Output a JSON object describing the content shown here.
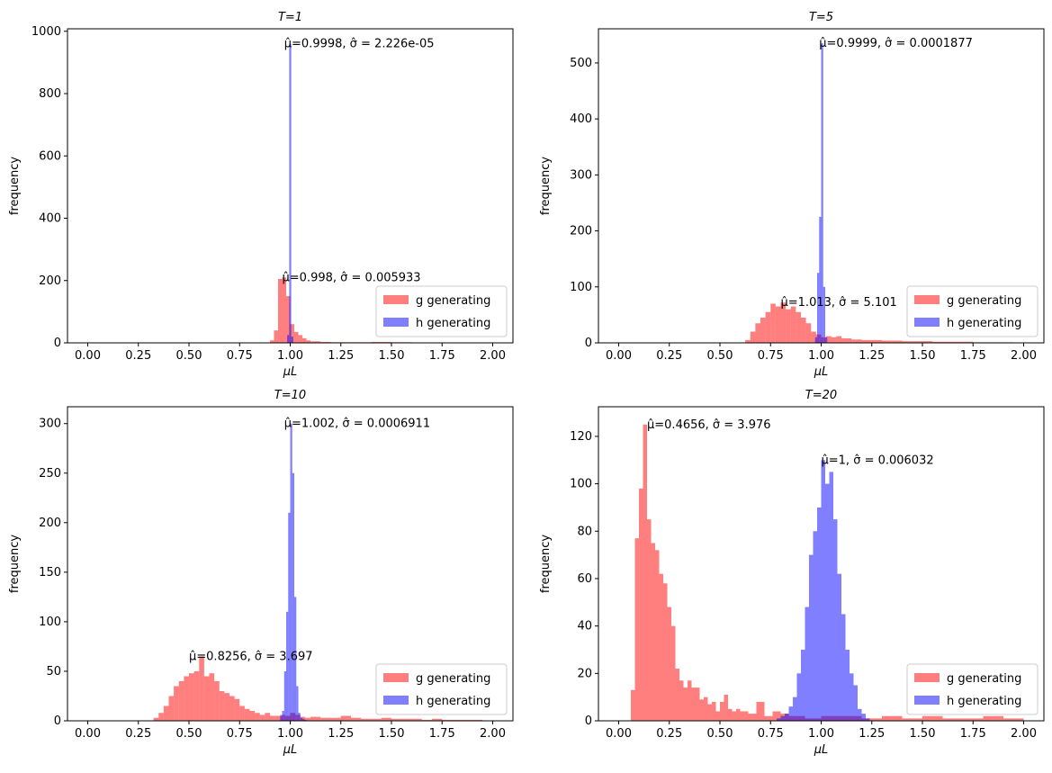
{
  "chart_data": [
    {
      "type": "histogram",
      "title": "T=1",
      "xlabel": "μL",
      "ylabel": "frequency",
      "legend": "lower right",
      "alpha": 0.5,
      "xlim": [
        -0.1,
        2.1
      ],
      "ylim": [
        0,
        1008
      ],
      "xticks": [
        {
          "value": 0,
          "label": "0.00"
        },
        {
          "value": 0.25,
          "label": "0.25"
        },
        {
          "value": 0.5,
          "label": "0.50"
        },
        {
          "value": 0.75,
          "label": "0.75"
        },
        {
          "value": 1,
          "label": "1.00"
        },
        {
          "value": 1.25,
          "label": "1.25"
        },
        {
          "value": 1.5,
          "label": "1.50"
        },
        {
          "value": 1.75,
          "label": "1.75"
        },
        {
          "value": 2,
          "label": "2.00"
        }
      ],
      "yticks": [
        0,
        200,
        400,
        600,
        800,
        1000
      ],
      "series": [
        {
          "name": "g generating",
          "color": "#ff0000",
          "bins": [
            0.9,
            0.92,
            0.94,
            0.96,
            0.98,
            1.0,
            1.02,
            1.04,
            1.06,
            1.08,
            1.1,
            1.15,
            1.2,
            1.3,
            1.4,
            1.5,
            1.6,
            1.65
          ],
          "values": [
            8,
            40,
            205,
            210,
            150,
            60,
            35,
            25,
            15,
            8,
            5,
            3,
            2,
            2,
            3,
            2,
            1
          ]
        },
        {
          "name": "h generating",
          "color": "#0000ff",
          "bins": [
            0.985,
            0.995,
            1.005,
            1.015
          ],
          "values": [
            25,
            960,
            20
          ]
        }
      ],
      "annotations": [
        {
          "text": "μ̂=0.9998, σ̂ = 2.226e-05",
          "x": 0.97,
          "y": 960
        },
        {
          "text": "μ̂=0.998, σ̂ = 0.005933",
          "x": 0.96,
          "y": 210
        }
      ]
    },
    {
      "type": "histogram",
      "title": "T=5",
      "xlabel": "μL",
      "ylabel": "frequency",
      "legend": "lower right",
      "alpha": 0.5,
      "xlim": [
        -0.1,
        2.1
      ],
      "ylim": [
        0,
        561
      ],
      "xticks": [
        {
          "value": 0,
          "label": "0.00"
        },
        {
          "value": 0.25,
          "label": "0.25"
        },
        {
          "value": 0.5,
          "label": "0.50"
        },
        {
          "value": 0.75,
          "label": "0.75"
        },
        {
          "value": 1,
          "label": "1.00"
        },
        {
          "value": 1.25,
          "label": "1.25"
        },
        {
          "value": 1.5,
          "label": "1.50"
        },
        {
          "value": 1.75,
          "label": "1.75"
        },
        {
          "value": 2,
          "label": "2.00"
        }
      ],
      "yticks": [
        0,
        100,
        200,
        300,
        400,
        500
      ],
      "series": [
        {
          "name": "g generating",
          "color": "#ff0000",
          "bins": [
            0.625,
            0.65,
            0.675,
            0.7,
            0.725,
            0.75,
            0.775,
            0.8,
            0.825,
            0.85,
            0.875,
            0.9,
            0.925,
            0.95,
            0.975,
            1.0,
            1.025,
            1.05,
            1.075,
            1.1,
            1.15,
            1.2,
            1.25,
            1.3,
            1.35,
            1.4,
            1.45,
            1.5,
            1.55,
            1.6,
            1.65,
            1.7,
            1.75,
            1.8,
            1.85,
            1.9,
            1.95
          ],
          "values": [
            5,
            20,
            35,
            45,
            55,
            70,
            65,
            72,
            60,
            65,
            55,
            45,
            35,
            20,
            15,
            10,
            12,
            10,
            12,
            8,
            6,
            5,
            5,
            4,
            4,
            3,
            3,
            3,
            2,
            2,
            2,
            2,
            1,
            1,
            1,
            1
          ]
        },
        {
          "name": "h generating",
          "color": "#0000ff",
          "bins": [
            0.97,
            0.98,
            0.99,
            1.0,
            1.01,
            1.02,
            1.03
          ],
          "values": [
            10,
            125,
            225,
            535,
            100,
            10
          ]
        }
      ],
      "annotations": [
        {
          "text": "μ̂=0.9999, σ̂ = 0.0001877",
          "x": 0.99,
          "y": 535
        },
        {
          "text": "μ̂=1.013, σ̂ = 5.101",
          "x": 0.8,
          "y": 72
        }
      ]
    },
    {
      "type": "histogram",
      "title": "T=10",
      "xlabel": "μL",
      "ylabel": "frequency",
      "legend": "lower right",
      "alpha": 0.5,
      "xlim": [
        -0.1,
        2.1
      ],
      "ylim": [
        0,
        317
      ],
      "xticks": [
        {
          "value": 0,
          "label": "0.00"
        },
        {
          "value": 0.25,
          "label": "0.25"
        },
        {
          "value": 0.5,
          "label": "0.50"
        },
        {
          "value": 0.75,
          "label": "0.75"
        },
        {
          "value": 1,
          "label": "1.00"
        },
        {
          "value": 1.25,
          "label": "1.25"
        },
        {
          "value": 1.5,
          "label": "1.50"
        },
        {
          "value": 1.75,
          "label": "1.75"
        },
        {
          "value": 2,
          "label": "2.00"
        }
      ],
      "yticks": [
        0,
        50,
        100,
        150,
        200,
        250,
        300
      ],
      "series": [
        {
          "name": "g generating",
          "color": "#ff0000",
          "bins": [
            0.325,
            0.35,
            0.375,
            0.4,
            0.425,
            0.45,
            0.475,
            0.5,
            0.525,
            0.55,
            0.575,
            0.6,
            0.625,
            0.65,
            0.675,
            0.7,
            0.725,
            0.75,
            0.775,
            0.8,
            0.825,
            0.85,
            0.875,
            0.9,
            0.925,
            0.95,
            0.975,
            1.0,
            1.025,
            1.05,
            1.075,
            1.1,
            1.15,
            1.2,
            1.25,
            1.3,
            1.35,
            1.4,
            1.45,
            1.5,
            1.55,
            1.6,
            1.65,
            1.7,
            1.75,
            1.8,
            1.85,
            1.9,
            1.95
          ],
          "values": [
            3,
            8,
            15,
            25,
            35,
            40,
            45,
            48,
            50,
            65,
            45,
            48,
            40,
            30,
            28,
            25,
            22,
            15,
            12,
            10,
            8,
            6,
            8,
            5,
            5,
            6,
            5,
            8,
            6,
            4,
            3,
            4,
            3,
            3,
            5,
            3,
            2,
            2,
            3,
            2,
            2,
            2,
            1,
            2,
            1,
            1,
            1,
            1
          ]
        },
        {
          "name": "h generating",
          "color": "#0000ff",
          "bins": [
            0.95,
            0.96,
            0.97,
            0.98,
            0.99,
            1.0,
            1.01,
            1.02,
            1.03,
            1.04,
            1.05,
            1.06,
            1.07,
            1.08
          ],
          "values": [
            5,
            10,
            50,
            110,
            210,
            300,
            250,
            125,
            35,
            8,
            3,
            2,
            1
          ]
        }
      ],
      "annotations": [
        {
          "text": "μ̂=1.002, σ̂ = 0.0006911",
          "x": 0.97,
          "y": 300
        },
        {
          "text": "μ̂=0.8256, σ̂ = 3.697",
          "x": 0.5,
          "y": 65
        }
      ]
    },
    {
      "type": "histogram",
      "title": "T=20",
      "xlabel": "μL",
      "ylabel": "frequency",
      "legend": "lower right",
      "alpha": 0.5,
      "xlim": [
        -0.1,
        2.1
      ],
      "ylim": [
        0,
        132.5
      ],
      "xticks": [
        {
          "value": 0,
          "label": "0.00"
        },
        {
          "value": 0.25,
          "label": "0.25"
        },
        {
          "value": 0.5,
          "label": "0.50"
        },
        {
          "value": 0.75,
          "label": "0.75"
        },
        {
          "value": 1,
          "label": "1.00"
        },
        {
          "value": 1.25,
          "label": "1.25"
        },
        {
          "value": 1.5,
          "label": "1.50"
        },
        {
          "value": 1.75,
          "label": "1.75"
        },
        {
          "value": 2,
          "label": "2.00"
        }
      ],
      "yticks": [
        0,
        20,
        40,
        60,
        80,
        100,
        120
      ],
      "series": [
        {
          "name": "g generating",
          "color": "#ff0000",
          "bins": [
            0.06,
            0.08,
            0.1,
            0.12,
            0.14,
            0.16,
            0.18,
            0.2,
            0.22,
            0.24,
            0.26,
            0.28,
            0.3,
            0.32,
            0.34,
            0.36,
            0.38,
            0.4,
            0.42,
            0.44,
            0.46,
            0.48,
            0.5,
            0.52,
            0.54,
            0.56,
            0.58,
            0.6,
            0.64,
            0.68,
            0.72,
            0.76,
            0.8,
            0.84,
            0.88,
            0.92,
            0.96,
            1.0,
            1.1,
            1.2,
            1.3,
            1.4,
            1.5,
            1.6,
            1.7,
            1.8,
            1.9,
            2.0
          ],
          "values": [
            13,
            77,
            98,
            125,
            85,
            75,
            72,
            62,
            58,
            48,
            40,
            22,
            17,
            14,
            17,
            14,
            14,
            9,
            10,
            7,
            8,
            4,
            8,
            11,
            5,
            4,
            5,
            4,
            3,
            8,
            2,
            4,
            3,
            2,
            2,
            1,
            1,
            2,
            2,
            1,
            2,
            1,
            2,
            1,
            1,
            2,
            1
          ]
        },
        {
          "name": "h generating",
          "color": "#0000ff",
          "bins": [
            0.78,
            0.8,
            0.82,
            0.84,
            0.86,
            0.88,
            0.9,
            0.92,
            0.94,
            0.96,
            0.98,
            1.0,
            1.02,
            1.04,
            1.06,
            1.08,
            1.1,
            1.12,
            1.14,
            1.16,
            1.18,
            1.2,
            1.22,
            1.24
          ],
          "values": [
            1,
            2,
            3,
            6,
            10,
            20,
            30,
            48,
            70,
            80,
            90,
            110,
            100,
            105,
            85,
            62,
            45,
            30,
            20,
            15,
            5,
            3,
            1
          ]
        }
      ],
      "annotations": [
        {
          "text": "μ̂=0.4656, σ̂ = 3.976",
          "x": 0.14,
          "y": 125
        },
        {
          "text": "μ̂=1, σ̂ = 0.006032",
          "x": 1.0,
          "y": 110
        }
      ]
    }
  ]
}
